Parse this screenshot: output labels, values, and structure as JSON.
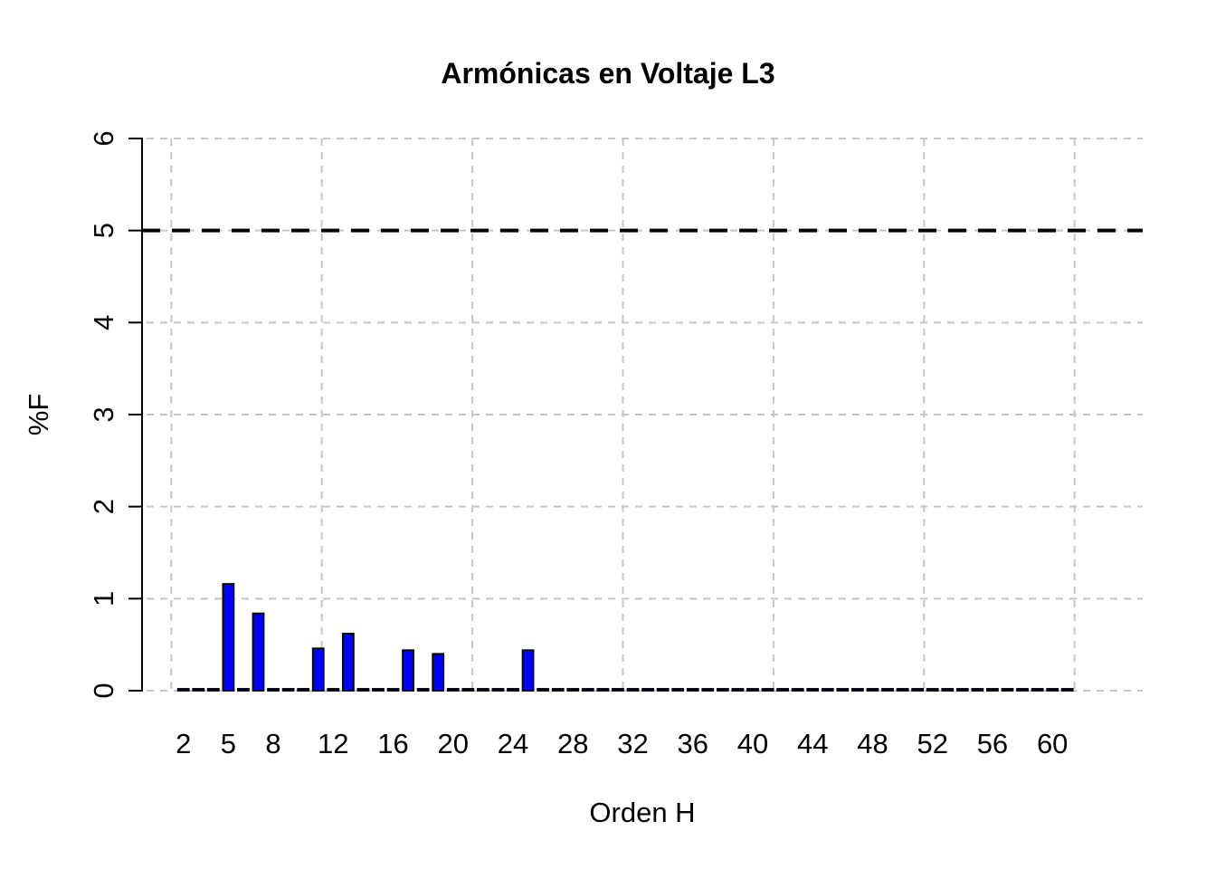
{
  "chart_data": {
    "type": "bar",
    "title": "Armónicas en Voltaje L3",
    "xlabel": "Orden H",
    "ylabel": "%F",
    "ylim": [
      0,
      6
    ],
    "y_ticks": [
      0,
      1,
      2,
      3,
      4,
      5,
      6
    ],
    "x_tick_orders": [
      2,
      5,
      8,
      12,
      16,
      20,
      24,
      28,
      32,
      36,
      40,
      44,
      48,
      52,
      56,
      60
    ],
    "x_tick_labels": [
      "2",
      "5",
      "8",
      "12",
      "16",
      "20",
      "24",
      "28",
      "32",
      "36",
      "40",
      "44",
      "48",
      "52",
      "56",
      "60"
    ],
    "order_range": [
      2,
      61
    ],
    "bars": [
      {
        "order": 5,
        "value": 1.16
      },
      {
        "order": 7,
        "value": 0.84
      },
      {
        "order": 11,
        "value": 0.46
      },
      {
        "order": 13,
        "value": 0.62
      },
      {
        "order": 17,
        "value": 0.44
      },
      {
        "order": 19,
        "value": 0.4
      },
      {
        "order": 25,
        "value": 0.44
      }
    ],
    "other_orders_value": 0.02,
    "limit_line": {
      "value": 5,
      "style": "dashed",
      "color": "#000000"
    },
    "grid": {
      "shown": true,
      "style": "dashed",
      "vertical_lines": 7
    },
    "legend": null,
    "colors": {
      "bar_fill": "#0000FF",
      "bar_border": "#000000",
      "grid": "#C6C6C6",
      "axis": "#000000",
      "background": "#FFFFFF"
    }
  }
}
